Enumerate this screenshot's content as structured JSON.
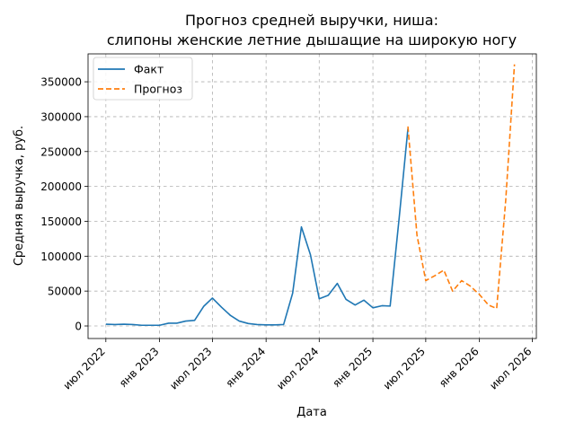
{
  "chart_data": {
    "type": "line",
    "title_line1": "Прогноз средней выручки, ниша:",
    "title_line2": "слипоны женские летние дышащие на широкую ногу",
    "xlabel": "Дата",
    "ylabel": "Средняя выручка, руб.",
    "xlim": [
      "2022-05-01",
      "2026-07-15"
    ],
    "ylim": [
      -18000,
      390000
    ],
    "yticks": [
      0,
      50000,
      100000,
      150000,
      200000,
      250000,
      300000,
      350000
    ],
    "xticks": [
      {
        "date": "2022-07-01",
        "label": "июл 2022"
      },
      {
        "date": "2023-01-01",
        "label": "янв 2023"
      },
      {
        "date": "2023-07-01",
        "label": "июл 2023"
      },
      {
        "date": "2024-01-01",
        "label": "янв 2024"
      },
      {
        "date": "2024-07-01",
        "label": "июл 2024"
      },
      {
        "date": "2025-01-01",
        "label": "янв 2025"
      },
      {
        "date": "2025-07-01",
        "label": "июл 2025"
      },
      {
        "date": "2026-01-01",
        "label": "янв 2026"
      },
      {
        "date": "2026-07-01",
        "label": "июл 2026"
      }
    ],
    "grid": true,
    "legend_position": "top-left",
    "series": [
      {
        "name": "Факт",
        "color": "#1f77b4",
        "style": "solid",
        "points": [
          {
            "x": "2022-07-01",
            "y": 2500
          },
          {
            "x": "2022-08-01",
            "y": 2000
          },
          {
            "x": "2022-09-01",
            "y": 2500
          },
          {
            "x": "2022-10-01",
            "y": 2000
          },
          {
            "x": "2022-11-01",
            "y": 1000
          },
          {
            "x": "2022-12-01",
            "y": 1000
          },
          {
            "x": "2023-01-01",
            "y": 1000
          },
          {
            "x": "2023-02-01",
            "y": 4000
          },
          {
            "x": "2023-03-01",
            "y": 4000
          },
          {
            "x": "2023-04-01",
            "y": 7000
          },
          {
            "x": "2023-05-01",
            "y": 8000
          },
          {
            "x": "2023-06-01",
            "y": 28000
          },
          {
            "x": "2023-07-01",
            "y": 40000
          },
          {
            "x": "2023-08-01",
            "y": 27000
          },
          {
            "x": "2023-09-01",
            "y": 15000
          },
          {
            "x": "2023-10-01",
            "y": 7000
          },
          {
            "x": "2023-11-01",
            "y": 3500
          },
          {
            "x": "2023-12-01",
            "y": 2000
          },
          {
            "x": "2024-01-01",
            "y": 1500
          },
          {
            "x": "2024-02-01",
            "y": 1500
          },
          {
            "x": "2024-03-01",
            "y": 2000
          },
          {
            "x": "2024-04-01",
            "y": 47000
          },
          {
            "x": "2024-05-01",
            "y": 142000
          },
          {
            "x": "2024-06-01",
            "y": 102000
          },
          {
            "x": "2024-07-01",
            "y": 39000
          },
          {
            "x": "2024-08-01",
            "y": 44000
          },
          {
            "x": "2024-09-01",
            "y": 61000
          },
          {
            "x": "2024-10-01",
            "y": 38000
          },
          {
            "x": "2024-11-01",
            "y": 30000
          },
          {
            "x": "2024-12-01",
            "y": 37000
          },
          {
            "x": "2025-01-01",
            "y": 26000
          },
          {
            "x": "2025-02-01",
            "y": 29000
          },
          {
            "x": "2025-03-01",
            "y": 28500
          },
          {
            "x": "2025-04-01",
            "y": 155000
          },
          {
            "x": "2025-05-01",
            "y": 283000
          }
        ]
      },
      {
        "name": "Прогноз",
        "color": "#ff7f0e",
        "style": "dashed",
        "points": [
          {
            "x": "2025-05-01",
            "y": 286000
          },
          {
            "x": "2025-06-01",
            "y": 130000
          },
          {
            "x": "2025-07-01",
            "y": 65000
          },
          {
            "x": "2025-08-01",
            "y": 72000
          },
          {
            "x": "2025-09-01",
            "y": 80000
          },
          {
            "x": "2025-10-01",
            "y": 50000
          },
          {
            "x": "2025-11-01",
            "y": 65000
          },
          {
            "x": "2025-12-01",
            "y": 57000
          },
          {
            "x": "2026-01-01",
            "y": 45000
          },
          {
            "x": "2026-02-01",
            "y": 30000
          },
          {
            "x": "2026-03-01",
            "y": 25000
          },
          {
            "x": "2026-04-01",
            "y": 180000
          },
          {
            "x": "2026-05-01",
            "y": 375000
          }
        ]
      }
    ]
  }
}
